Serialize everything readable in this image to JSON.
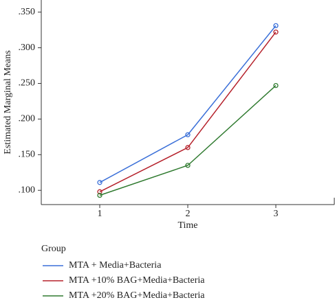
{
  "chart_data": {
    "type": "line",
    "ylabel": "Estimated Marginal Means",
    "xlabel": "Time",
    "legend_title": "Group",
    "categories": [
      "1",
      "2",
      "3"
    ],
    "series": [
      {
        "name": "MTA + Media+Bacteria",
        "color": "#3a6fd8",
        "values": [
          0.111,
          0.178,
          0.331
        ]
      },
      {
        "name": "MTA +10% BAG+Media+Bacteria",
        "color": "#b5202a",
        "values": [
          0.098,
          0.16,
          0.322
        ]
      },
      {
        "name": "MTA +20% BAG+Media+Bacteria",
        "color": "#2f7a2f",
        "values": [
          0.093,
          0.135,
          0.247
        ]
      }
    ],
    "ylim": [
      0.08,
      0.367
    ],
    "yticks": [
      {
        "value": 0.1,
        "label": ".100"
      },
      {
        "value": 0.15,
        "label": ".150"
      },
      {
        "value": 0.2,
        "label": ".200"
      },
      {
        "value": 0.25,
        "label": ".250"
      },
      {
        "value": 0.3,
        "label": ".300"
      },
      {
        "value": 0.35,
        "label": ".350"
      }
    ],
    "legend": "bottom-left"
  }
}
